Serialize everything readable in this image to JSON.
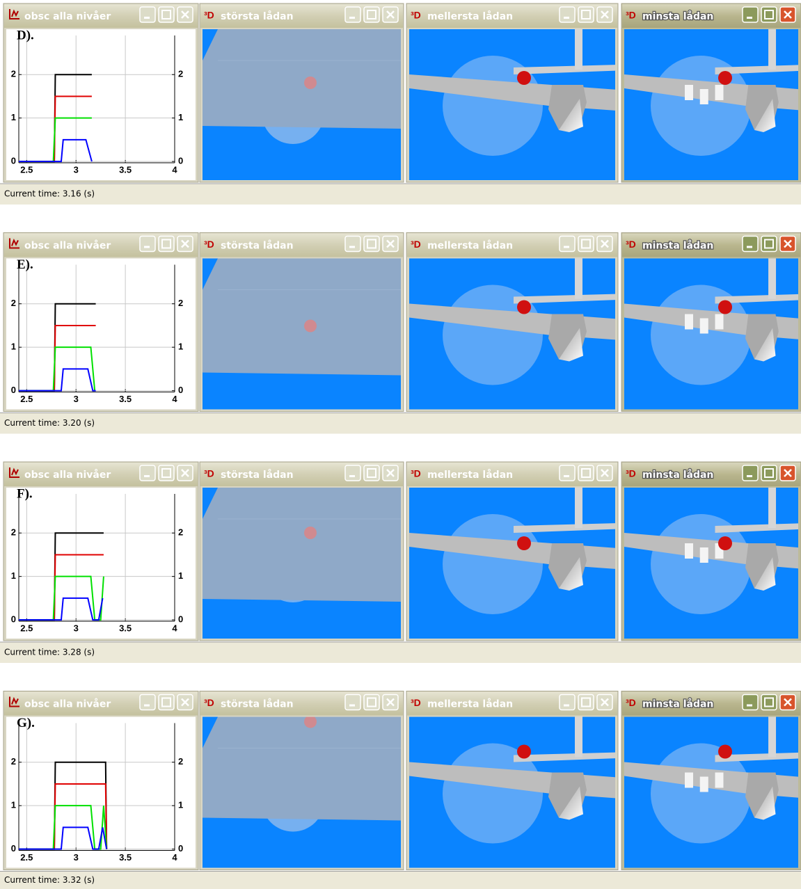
{
  "view_icon": "³D",
  "panels": [
    {
      "windows": [
        "obsc alla nivåer",
        "största lådan",
        "mellersta lådan",
        "minsta lådan"
      ],
      "status": "Current time: 3.16 (s)"
    },
    {
      "windows": [
        "obsc alla nivåer",
        "största lådan",
        "mellersta lådan",
        "minsta lådan"
      ],
      "status": "Current time: 3.20 (s)"
    },
    {
      "windows": [
        "obsc alla nivåer",
        "största lådan",
        "mellersta lådan",
        "minsta lådan"
      ],
      "status": "Current time: 3.28 (s)"
    },
    {
      "windows": [
        "obsc alla nivåer",
        "största lådan",
        "mellersta lådan",
        "minsta lådan"
      ],
      "status": "Current time: 3.32 (s)"
    }
  ],
  "chart_data": [
    {
      "type": "line",
      "label": "D).",
      "xlim": [
        2.42,
        4
      ],
      "xticks": [
        2.5,
        3,
        3.5,
        4
      ],
      "ylim": [
        -0.03,
        2.9
      ],
      "yticks": [
        0,
        1,
        2
      ],
      "grid": true,
      "series": [
        {
          "color": "#000000",
          "x": [
            2.42,
            2.78,
            2.79,
            3.16
          ],
          "values": [
            0,
            0,
            2,
            2
          ]
        },
        {
          "color": "#e00000",
          "x": [
            2.42,
            2.78,
            2.79,
            3.16
          ],
          "values": [
            0,
            0,
            1.5,
            1.5
          ]
        },
        {
          "color": "#00e000",
          "x": [
            2.42,
            2.77,
            2.79,
            3.16
          ],
          "values": [
            0,
            0,
            1,
            1
          ]
        },
        {
          "color": "#0000ff",
          "x": [
            2.42,
            2.85,
            2.87,
            3.1,
            3.16
          ],
          "values": [
            0,
            0,
            0.5,
            0.5,
            0
          ]
        }
      ]
    },
    {
      "type": "line",
      "label": "E).",
      "xlim": [
        2.42,
        4
      ],
      "xticks": [
        2.5,
        3,
        3.5,
        4
      ],
      "ylim": [
        -0.03,
        2.9
      ],
      "yticks": [
        0,
        1,
        2
      ],
      "grid": true,
      "series": [
        {
          "color": "#000000",
          "x": [
            2.42,
            2.78,
            2.79,
            3.2
          ],
          "values": [
            0,
            0,
            2,
            2
          ]
        },
        {
          "color": "#e00000",
          "x": [
            2.42,
            2.78,
            2.79,
            3.2
          ],
          "values": [
            0,
            0,
            1.5,
            1.5
          ]
        },
        {
          "color": "#00e000",
          "x": [
            2.42,
            2.77,
            2.79,
            3.15,
            3.19
          ],
          "values": [
            0,
            0,
            1,
            1,
            0
          ]
        },
        {
          "color": "#0000ff",
          "x": [
            2.42,
            2.85,
            2.87,
            3.12,
            3.17,
            3.2
          ],
          "values": [
            0,
            0,
            0.5,
            0.5,
            0,
            0
          ]
        }
      ]
    },
    {
      "type": "line",
      "label": "F).",
      "xlim": [
        2.42,
        4
      ],
      "xticks": [
        2.5,
        3,
        3.5,
        4
      ],
      "ylim": [
        -0.03,
        2.9
      ],
      "yticks": [
        0,
        1,
        2
      ],
      "grid": true,
      "series": [
        {
          "color": "#000000",
          "x": [
            2.42,
            2.78,
            2.79,
            3.28
          ],
          "values": [
            0,
            0,
            2,
            2
          ]
        },
        {
          "color": "#e00000",
          "x": [
            2.42,
            2.78,
            2.79,
            3.28
          ],
          "values": [
            0,
            0,
            1.5,
            1.5
          ]
        },
        {
          "color": "#00e000",
          "x": [
            2.42,
            2.77,
            2.79,
            3.15,
            3.19,
            3.25,
            3.28
          ],
          "values": [
            0,
            0,
            1,
            1,
            0,
            0,
            1
          ]
        },
        {
          "color": "#0000ff",
          "x": [
            2.42,
            2.85,
            2.87,
            3.12,
            3.17,
            3.23,
            3.27
          ],
          "values": [
            0,
            0,
            0.5,
            0.5,
            0,
            0,
            0.5
          ]
        }
      ]
    },
    {
      "type": "line",
      "label": "G).",
      "xlim": [
        2.42,
        4
      ],
      "xticks": [
        2.5,
        3,
        3.5,
        4
      ],
      "ylim": [
        -0.03,
        2.9
      ],
      "yticks": [
        0,
        1,
        2
      ],
      "grid": true,
      "series": [
        {
          "color": "#000000",
          "x": [
            2.42,
            2.78,
            2.79,
            3.3,
            3.31
          ],
          "values": [
            0,
            0,
            2,
            2,
            0
          ]
        },
        {
          "color": "#e00000",
          "x": [
            2.42,
            2.78,
            2.79,
            3.3,
            3.31
          ],
          "values": [
            0,
            0,
            1.5,
            1.5,
            0
          ]
        },
        {
          "color": "#00e000",
          "x": [
            2.42,
            2.77,
            2.79,
            3.15,
            3.19,
            3.25,
            3.28,
            3.31
          ],
          "values": [
            0,
            0,
            1,
            1,
            0,
            0,
            1,
            0
          ]
        },
        {
          "color": "#0000ff",
          "x": [
            2.42,
            2.85,
            2.87,
            3.12,
            3.17,
            3.23,
            3.27,
            3.31
          ],
          "values": [
            0,
            0,
            0.5,
            0.5,
            0,
            0,
            0.5,
            0
          ]
        }
      ]
    }
  ]
}
